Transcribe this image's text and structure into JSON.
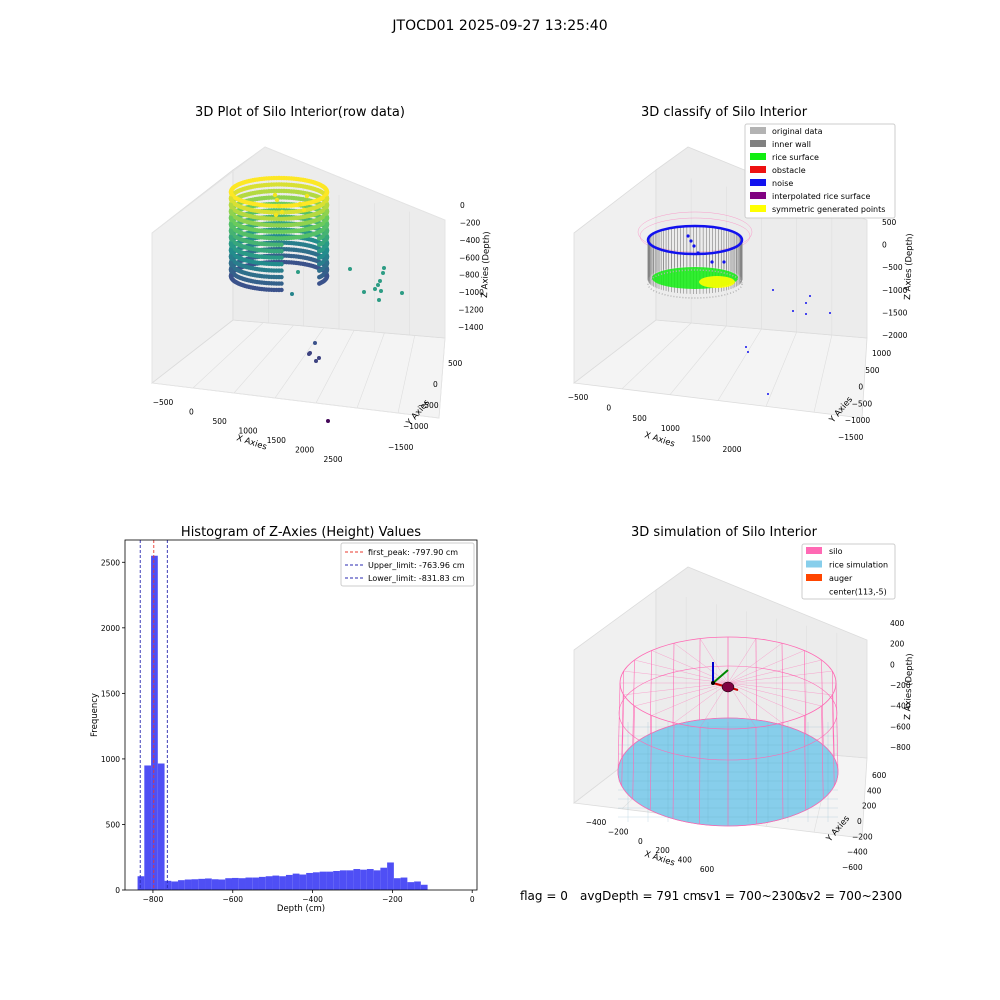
{
  "figure_title": "JTOCD01 2025-09-27 13:25:40",
  "status": {
    "flag": "flag = 0",
    "avg_depth": "avgDepth = 791 cm",
    "sv1": "sv1 = 700~2300",
    "sv2": "sv2 = 700~2300"
  },
  "colors": {
    "histogram_bar": "#4f4ff5",
    "peak_line": "#e8382e",
    "limit_line": "#2a2ab0",
    "original_data": "#b3b3b3",
    "inner_wall": "#808080",
    "rice_surface": "#11ee11",
    "obstacle": "#ee1111",
    "noise": "#1111ee",
    "interpolated_rice_surface": "#800080",
    "symmetric_generated_points": "#ffff00",
    "silo": "#ff69b4",
    "rice_simulation": "#87ceeb",
    "auger": "#ff4500"
  },
  "chart_data": [
    {
      "type": "scatter3d",
      "title": "3D Plot of Silo Interior(row data)",
      "xlabel": "X Axies",
      "ylabel": "Y Axies",
      "zlabel": "Z Axies (Depth)",
      "xticks": [
        "−500",
        "0",
        "500",
        "1000",
        "1500",
        "2000",
        "2500"
      ],
      "yticks": [
        "500",
        "0",
        "−500",
        "−1000",
        "−1500"
      ],
      "zticks": [
        "0",
        "−200",
        "−400",
        "−600",
        "−800",
        "−1000",
        "−1200",
        "−1400"
      ],
      "colormap": "viridis"
    },
    {
      "type": "scatter3d",
      "title": "3D classify of Silo Interior",
      "xlabel": "X Axies",
      "ylabel": "Y Axies",
      "zlabel": "Z Axies (Depth)",
      "xticks": [
        "−500",
        "0",
        "500",
        "1000",
        "1500",
        "2000"
      ],
      "yticks": [
        "1000",
        "500",
        "0",
        "−500",
        "−1000",
        "−1500"
      ],
      "zticks": [
        "500",
        "0",
        "−500",
        "−1000",
        "−1500",
        "−2000"
      ],
      "legend": [
        {
          "label": "original data",
          "color": "#b3b3b3"
        },
        {
          "label": "inner wall",
          "color": "#808080"
        },
        {
          "label": "rice surface",
          "color": "#11ee11"
        },
        {
          "label": "obstacle",
          "color": "#ee1111"
        },
        {
          "label": "noise",
          "color": "#1111ee"
        },
        {
          "label": "interpolated rice surface",
          "color": "#800080"
        },
        {
          "label": "symmetric generated points",
          "color": "#ffff00"
        }
      ],
      "legend_position": "top-right"
    },
    {
      "type": "bar",
      "title": "Histogram of Z-Axies (Height) Values",
      "xlabel": "Depth (cm)",
      "ylabel": "Frequency",
      "xlim": [
        -870,
        12
      ],
      "ylim": [
        0,
        2670
      ],
      "xticks": [
        -800,
        -600,
        -400,
        -200,
        0
      ],
      "xtick_labels": [
        "−800",
        "−600",
        "−400",
        "−200",
        "0"
      ],
      "yticks": [
        0,
        500,
        1000,
        1500,
        2000,
        2500
      ],
      "bin_start": -838.5,
      "bin_width": 16.9,
      "values": [
        105,
        950,
        2550,
        965,
        70,
        65,
        75,
        80,
        82,
        85,
        88,
        82,
        80,
        90,
        92,
        90,
        95,
        95,
        100,
        105,
        110,
        105,
        115,
        125,
        118,
        130,
        135,
        140,
        140,
        145,
        150,
        150,
        160,
        155,
        160,
        150,
        170,
        210,
        90,
        95,
        60,
        65,
        40
      ],
      "reference_lines": [
        {
          "value": -797.9,
          "label": "first_peak: -797.90 cm",
          "style": "peak"
        },
        {
          "value": -763.96,
          "label": "Upper_limit: -763.96 cm",
          "style": "limit"
        },
        {
          "value": -831.83,
          "label": "Lower_limit: -831.83 cm",
          "style": "limit"
        }
      ],
      "legend_position": "top-right"
    },
    {
      "type": "surface3d",
      "title": "3D simulation of Silo Interior",
      "xlabel": "X Axies",
      "ylabel": "Y Axies",
      "zlabel": "Z Axies (Depth)",
      "xticks": [
        "−400",
        "−200",
        "0",
        "200",
        "400",
        "600"
      ],
      "yticks": [
        "600",
        "400",
        "200",
        "0",
        "−200",
        "−400",
        "−600"
      ],
      "zticks": [
        "400",
        "200",
        "0",
        "−200",
        "−400",
        "−600",
        "−800"
      ],
      "legend": [
        {
          "label": "silo",
          "color": "#ff69b4"
        },
        {
          "label": "rice simulation",
          "color": "#87ceeb"
        },
        {
          "label": "auger",
          "color": "#ff4500"
        },
        {
          "label": "center(113,-5)",
          "color": ""
        }
      ],
      "legend_position": "top-right"
    }
  ]
}
